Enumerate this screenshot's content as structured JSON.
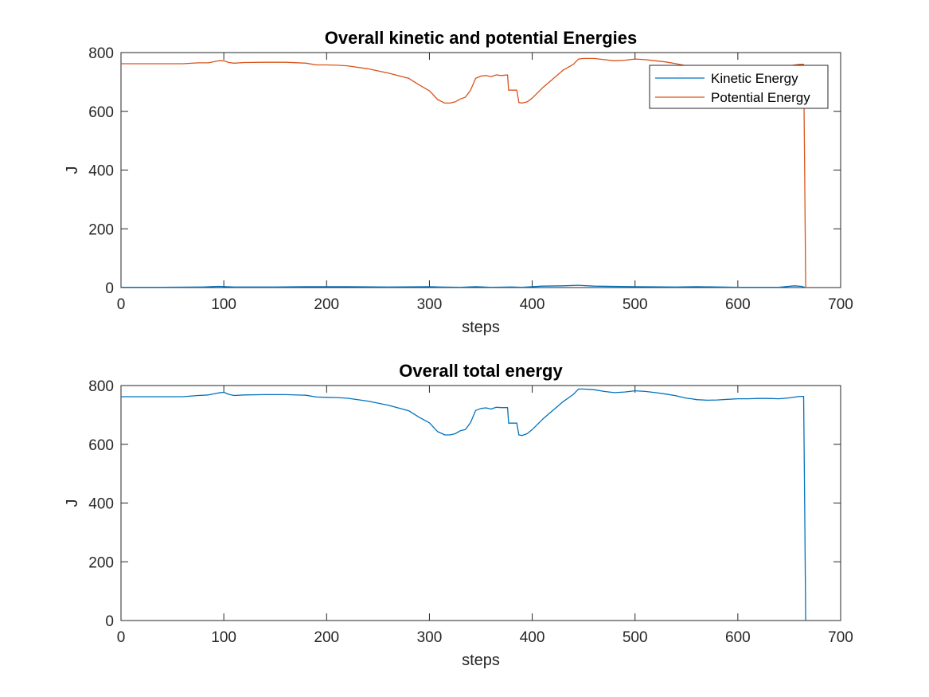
{
  "chart_data": [
    {
      "type": "line",
      "title": "Overall kinetic and potential Energies",
      "xlabel": "steps",
      "ylabel": "J",
      "xlim": [
        0,
        700
      ],
      "ylim": [
        0,
        800
      ],
      "xticks": [
        0,
        100,
        200,
        300,
        400,
        500,
        600,
        700
      ],
      "yticks": [
        0,
        200,
        400,
        600,
        800
      ],
      "grid": false,
      "legend_position": "top-right",
      "series": [
        {
          "name": "Kinetic Energy",
          "color": "#0072BD",
          "x": [
            0,
            40,
            80,
            95,
            110,
            150,
            180,
            220,
            260,
            300,
            310,
            330,
            345,
            360,
            380,
            390,
            410,
            430,
            445,
            460,
            500,
            540,
            560,
            600,
            640,
            655,
            662,
            666
          ],
          "y": [
            1,
            1,
            2,
            4,
            2,
            2,
            3,
            3,
            2,
            3,
            2,
            1,
            3,
            1,
            2,
            1,
            5,
            6,
            8,
            5,
            3,
            2,
            3,
            1,
            1,
            6,
            4,
            0
          ]
        },
        {
          "name": "Potential Energy",
          "color": "#D95319",
          "x": [
            0,
            20,
            40,
            60,
            75,
            85,
            95,
            100,
            105,
            110,
            120,
            140,
            160,
            180,
            190,
            200,
            210,
            220,
            240,
            260,
            280,
            290,
            300,
            308,
            315,
            320,
            325,
            330,
            335,
            340,
            345,
            350,
            355,
            360,
            365,
            370,
            376,
            377,
            385,
            387,
            390,
            395,
            400,
            410,
            420,
            430,
            440,
            445,
            450,
            460,
            470,
            480,
            490,
            500,
            510,
            520,
            530,
            540,
            550,
            555,
            560,
            570,
            580,
            590,
            600,
            610,
            620,
            630,
            640,
            650,
            660,
            664,
            665,
            666
          ],
          "y": [
            762,
            762,
            762,
            762,
            765,
            765,
            772,
            772,
            766,
            764,
            766,
            767,
            767,
            764,
            758,
            758,
            757,
            755,
            745,
            730,
            712,
            690,
            670,
            640,
            628,
            628,
            632,
            642,
            648,
            672,
            712,
            720,
            722,
            718,
            724,
            722,
            724,
            672,
            672,
            630,
            628,
            632,
            645,
            680,
            710,
            740,
            760,
            778,
            780,
            780,
            776,
            772,
            774,
            778,
            776,
            772,
            768,
            762,
            755,
            752,
            750,
            748,
            748,
            750,
            752,
            752,
            754,
            754,
            752,
            755,
            760,
            760,
            400,
            0
          ]
        }
      ]
    },
    {
      "type": "line",
      "title": "Overall total energy",
      "xlabel": "steps",
      "ylabel": "J",
      "xlim": [
        0,
        700
      ],
      "ylim": [
        0,
        800
      ],
      "xticks": [
        0,
        100,
        200,
        300,
        400,
        500,
        600,
        700
      ],
      "yticks": [
        0,
        200,
        400,
        600,
        800
      ],
      "grid": false,
      "series": [
        {
          "color": "#0072BD",
          "x": [
            0,
            20,
            40,
            60,
            75,
            85,
            95,
            100,
            105,
            110,
            120,
            140,
            160,
            180,
            190,
            200,
            210,
            220,
            240,
            260,
            280,
            290,
            300,
            308,
            315,
            320,
            325,
            330,
            335,
            340,
            345,
            350,
            355,
            360,
            365,
            370,
            376,
            377,
            385,
            387,
            390,
            395,
            400,
            410,
            420,
            430,
            440,
            445,
            450,
            460,
            470,
            480,
            490,
            500,
            510,
            520,
            530,
            540,
            550,
            555,
            560,
            570,
            580,
            590,
            600,
            610,
            620,
            630,
            640,
            650,
            660,
            664,
            665,
            666
          ],
          "y": [
            762,
            762,
            762,
            762,
            766,
            768,
            775,
            777,
            770,
            766,
            768,
            769,
            769,
            767,
            761,
            760,
            759,
            757,
            747,
            733,
            714,
            692,
            673,
            643,
            632,
            632,
            636,
            646,
            650,
            674,
            715,
            722,
            724,
            720,
            726,
            725,
            725,
            672,
            672,
            632,
            630,
            636,
            650,
            685,
            715,
            745,
            770,
            788,
            788,
            786,
            780,
            776,
            778,
            782,
            780,
            776,
            771,
            765,
            757,
            755,
            752,
            750,
            751,
            753,
            755,
            755,
            756,
            756,
            755,
            758,
            763,
            763,
            400,
            0
          ]
        }
      ]
    }
  ]
}
